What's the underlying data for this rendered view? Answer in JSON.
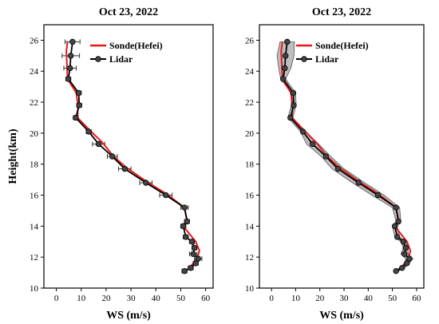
{
  "chart_data": [
    {
      "type": "line",
      "title": "Oct 23, 2022",
      "xlabel": "WS (m/s)",
      "ylabel": "Height(km)",
      "xlim": [
        -5,
        63
      ],
      "ylim": [
        10,
        27
      ],
      "xticks": [
        0,
        10,
        20,
        30,
        40,
        50,
        60
      ],
      "yticks": [
        10,
        12,
        14,
        16,
        18,
        20,
        22,
        24,
        26
      ],
      "legend_position": "top-right",
      "uncertainty_style": "error-bars",
      "series": [
        {
          "name": "Sonde(Hefei)",
          "color": "#e41a1c",
          "x": [
            4.5,
            4.0,
            4.2,
            4.5,
            8.0,
            8.7,
            8.5,
            14.0,
            18.5,
            23.0,
            28.0,
            36.0,
            44.0,
            51.5,
            52.5,
            51.0,
            53.5,
            56.0,
            57.5,
            56.5,
            53.0
          ],
          "y": [
            25.9,
            25.3,
            24.6,
            23.5,
            22.6,
            21.8,
            21.0,
            20.1,
            19.4,
            18.5,
            17.8,
            16.9,
            16.1,
            15.2,
            14.4,
            14.0,
            13.5,
            13.0,
            12.4,
            11.9,
            11.2
          ]
        },
        {
          "name": "Lidar",
          "color": "#000000",
          "x": [
            6.5,
            5.8,
            5.5,
            4.8,
            9.0,
            9.2,
            7.8,
            13.0,
            17.0,
            22.5,
            27.5,
            36.0,
            44.0,
            51.5,
            52.5,
            51.0,
            52.0,
            54.5,
            55.5,
            55.0,
            57.0,
            56.0,
            54.0,
            51.5
          ],
          "y": [
            25.9,
            25.0,
            24.2,
            23.5,
            22.6,
            21.8,
            21.0,
            20.1,
            19.3,
            18.5,
            17.7,
            16.8,
            16.0,
            15.2,
            14.3,
            14.0,
            13.3,
            13.0,
            12.6,
            12.2,
            11.9,
            11.6,
            11.3,
            11.1
          ],
          "err": [
            3.0,
            3.5,
            2.5,
            1.0,
            1.0,
            1.0,
            1.0,
            1.0,
            2.5,
            2.0,
            2.5,
            2.5,
            2.5,
            1.5,
            1.0,
            1.0,
            1.0,
            1.0,
            1.0,
            1.5,
            1.5,
            1.0,
            1.0,
            1.0
          ]
        }
      ]
    },
    {
      "type": "line",
      "title": "Oct 23, 2022",
      "xlabel": "WS (m/s)",
      "ylabel": "",
      "xlim": [
        -5,
        63
      ],
      "ylim": [
        10,
        27
      ],
      "xticks": [
        0,
        10,
        20,
        30,
        40,
        50,
        60
      ],
      "yticks": [
        10,
        12,
        14,
        16,
        18,
        20,
        22,
        24,
        26
      ],
      "legend_position": "top-right",
      "uncertainty_style": "shaded-band",
      "series": [
        {
          "name": "Sonde(Hefei)",
          "color": "#e41a1c",
          "x": [
            4.5,
            4.0,
            4.2,
            4.5,
            8.0,
            8.7,
            8.5,
            14.0,
            18.5,
            23.0,
            28.0,
            36.0,
            44.0,
            51.5,
            52.5,
            51.0,
            53.5,
            56.0,
            57.5,
            56.5,
            53.0
          ],
          "y": [
            25.9,
            25.3,
            24.6,
            23.5,
            22.6,
            21.8,
            21.0,
            20.1,
            19.4,
            18.5,
            17.8,
            16.9,
            16.1,
            15.2,
            14.4,
            14.0,
            13.5,
            13.0,
            12.4,
            11.9,
            11.2
          ]
        },
        {
          "name": "Lidar",
          "color": "#000000",
          "x": [
            6.5,
            5.8,
            5.5,
            4.8,
            9.0,
            9.2,
            7.8,
            13.0,
            17.0,
            22.5,
            27.5,
            36.0,
            44.0,
            51.5,
            52.5,
            51.0,
            52.0,
            54.5,
            55.5,
            55.0,
            57.0,
            56.0,
            54.0,
            51.5
          ],
          "y": [
            25.9,
            25.0,
            24.2,
            23.5,
            22.6,
            21.8,
            21.0,
            20.1,
            19.3,
            18.5,
            17.7,
            16.8,
            16.0,
            15.2,
            14.3,
            14.0,
            13.3,
            13.0,
            12.6,
            12.2,
            11.9,
            11.6,
            11.3,
            11.1
          ],
          "err": [
            3.0,
            3.5,
            2.5,
            1.0,
            1.0,
            1.0,
            1.0,
            1.0,
            2.5,
            2.0,
            2.5,
            2.5,
            2.5,
            1.5,
            1.0,
            1.0,
            1.0,
            1.0,
            1.0,
            1.5,
            1.5,
            1.0,
            1.0,
            1.0
          ]
        }
      ]
    }
  ]
}
